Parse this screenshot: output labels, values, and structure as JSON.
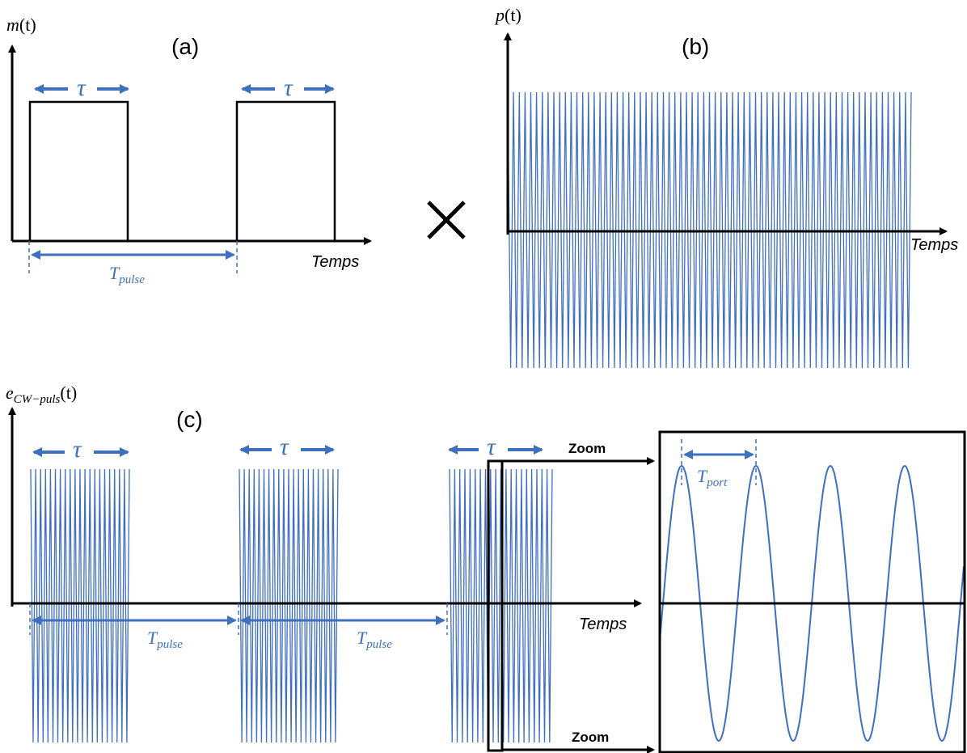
{
  "panel_a": {
    "label": "(a)",
    "y_label_main": "m",
    "y_label_arg": "(t)",
    "tau_label": "τ",
    "period_main": "T",
    "period_sub": "pulse",
    "x_label": "Temps"
  },
  "operator": "×",
  "panel_b": {
    "label": "(b)",
    "y_label_main": "p",
    "y_label_arg": "(t)",
    "x_label": "Temps"
  },
  "panel_c": {
    "label": "(c)",
    "y_label_main": "e",
    "y_label_sub": "CW−puls",
    "y_label_arg": "(t)",
    "tau_label": "τ",
    "period_main": "T",
    "period_sub": "pulse",
    "x_label": "Temps",
    "zoom_top": "Zoom",
    "zoom_bottom": "Zoom",
    "carrier_main": "T",
    "carrier_sub": "port"
  },
  "colors": {
    "signal": "#3f6fbf",
    "axis": "#000000"
  }
}
